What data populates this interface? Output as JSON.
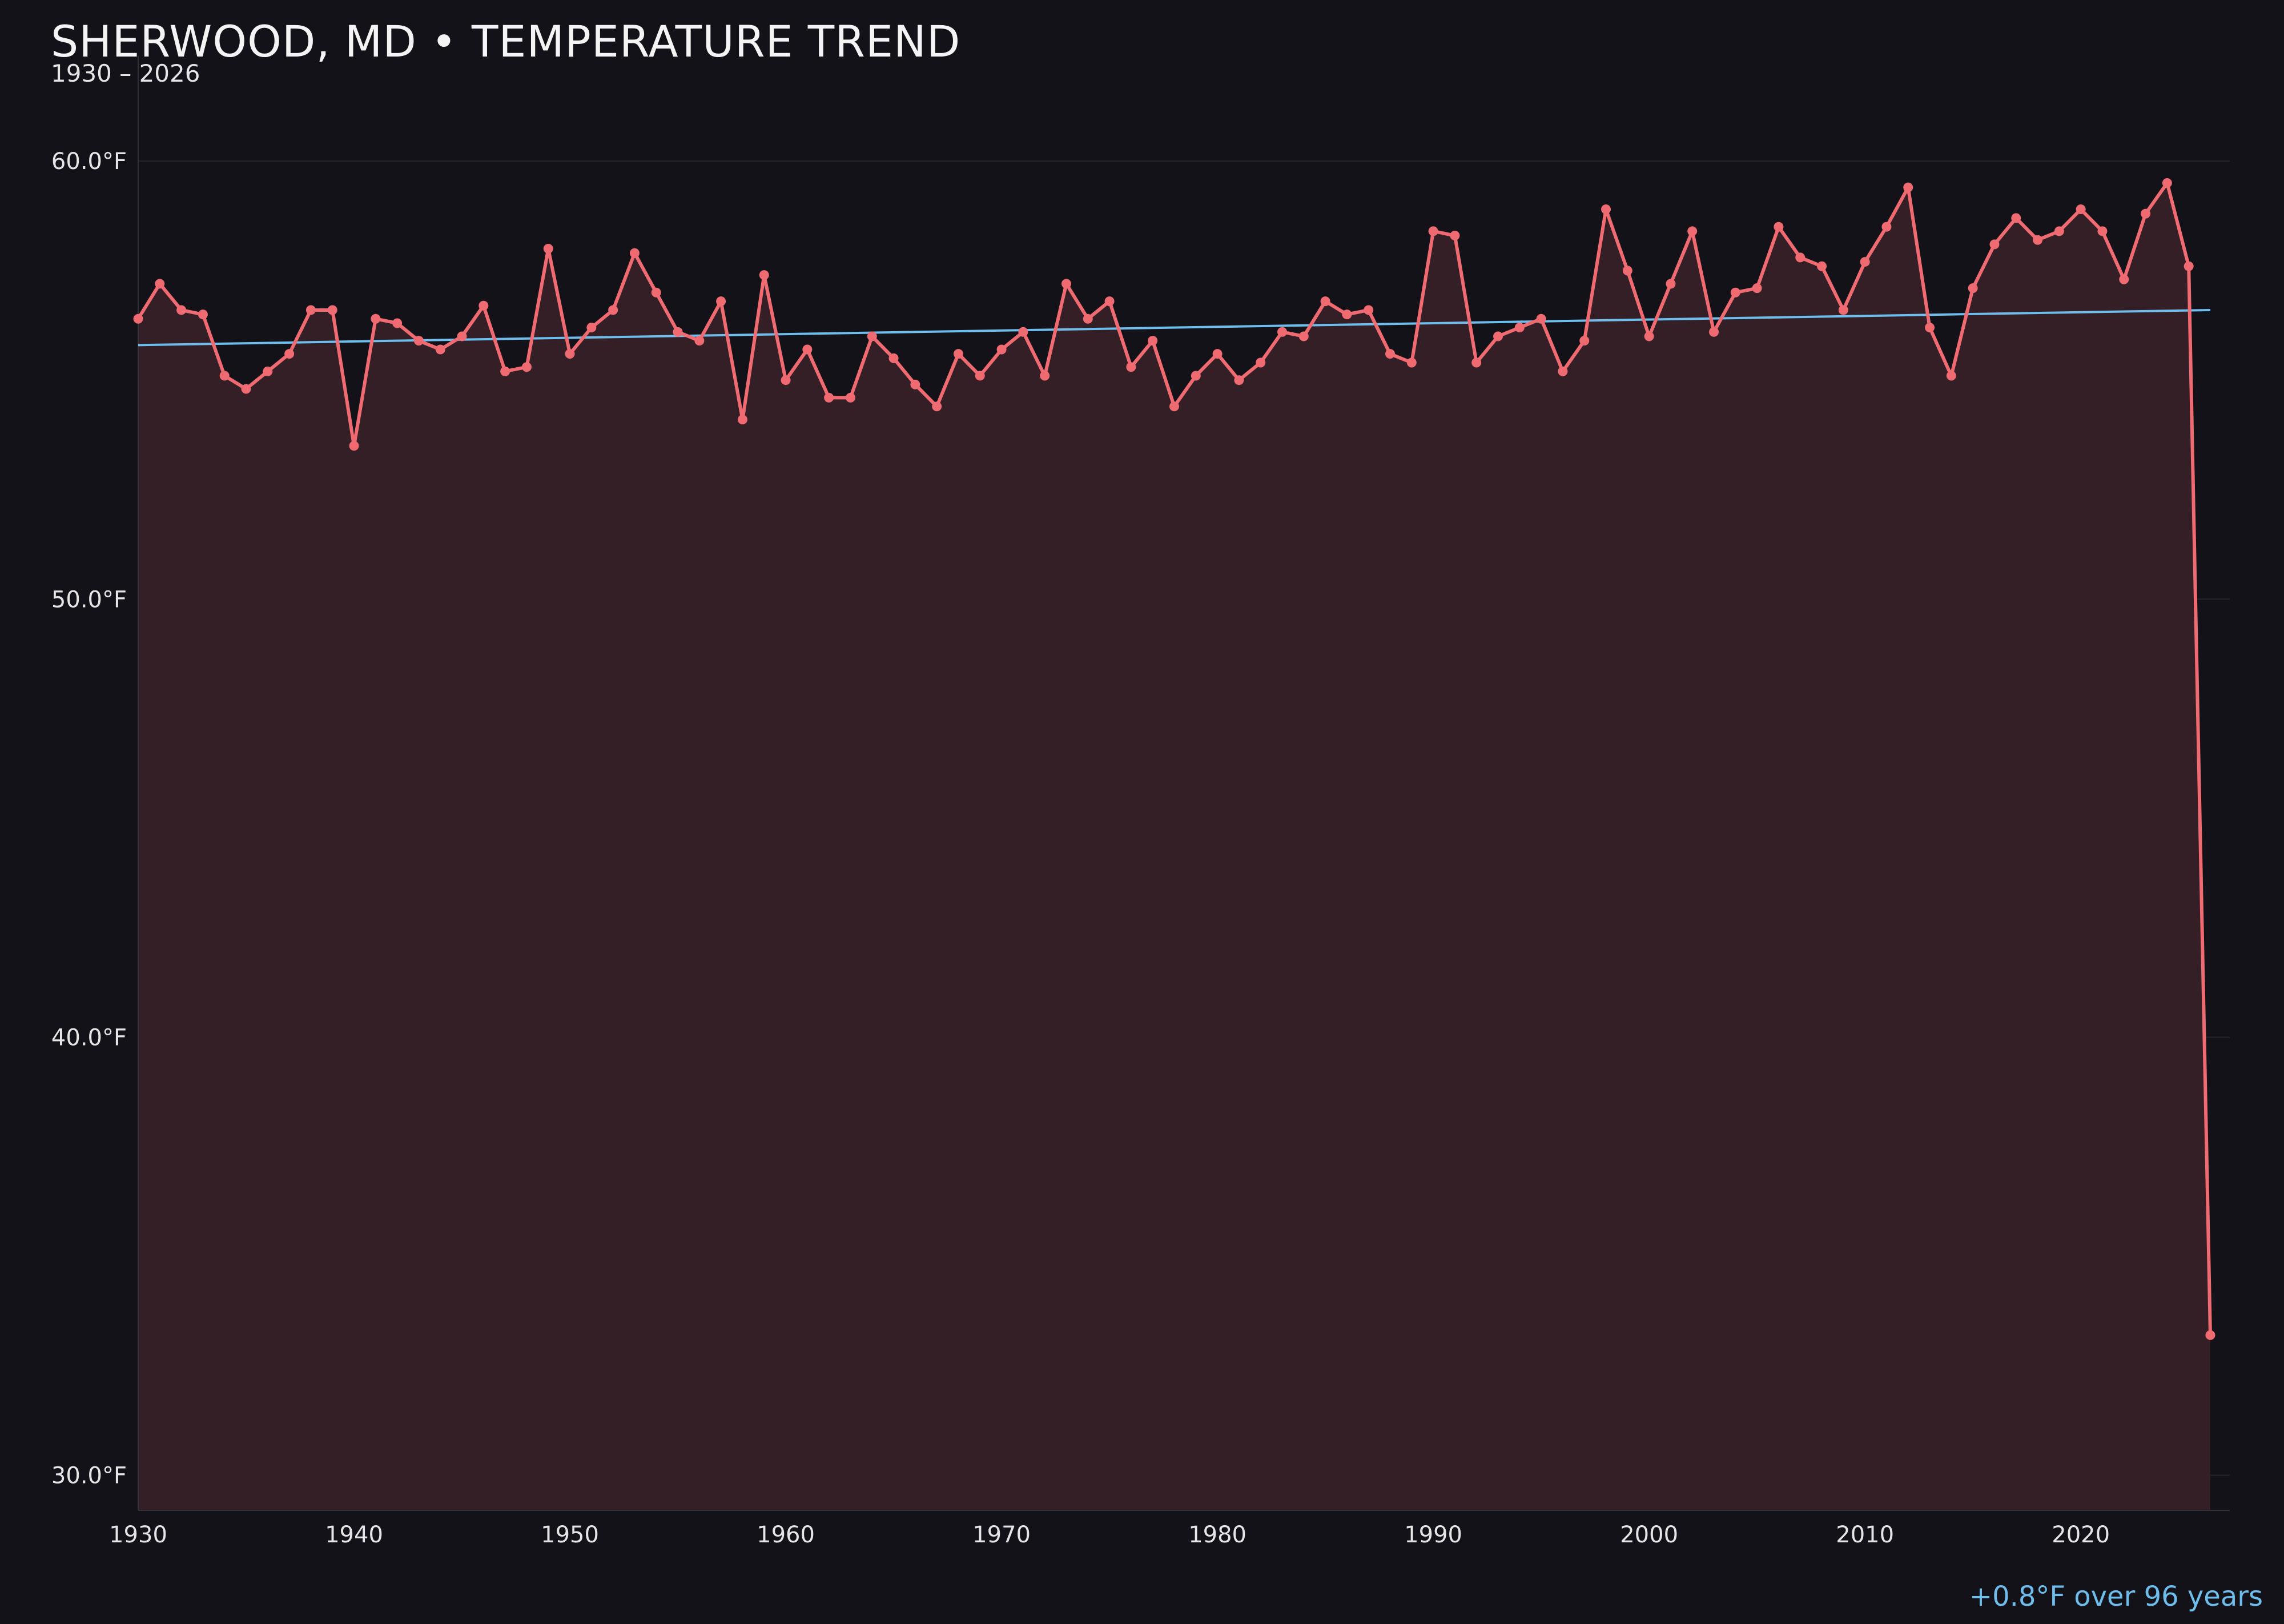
{
  "title": "SHERWOOD, MD • TEMPERATURE TREND",
  "subtitle": "1930 – 2026",
  "annotation": "+0.8°F over 96 years",
  "colors": {
    "background": "#131218",
    "series_line": "#ef6b71",
    "series_fill": "#351f26",
    "trend_line": "#6ebdec",
    "grid": "#26242c",
    "axis": "#33313a",
    "tick_text": "#e6e6e6"
  },
  "chart_data": {
    "type": "line",
    "title": "SHERWOOD, MD • TEMPERATURE TREND",
    "subtitle": "1930 – 2026",
    "xlabel": "",
    "ylabel": "",
    "xlim": [
      1930,
      2026.9
    ],
    "ylim": [
      29.2,
      62.4
    ],
    "x_ticks": [
      1930,
      1940,
      1950,
      1960,
      1970,
      1980,
      1990,
      2000,
      2010,
      2020
    ],
    "x_tick_labels": [
      "1930",
      "1940",
      "1950",
      "1960",
      "1970",
      "1980",
      "1990",
      "2000",
      "2010",
      "2020"
    ],
    "y_ticks": [
      30,
      40,
      50,
      60
    ],
    "y_tick_labels": [
      "30.0°F",
      "40.0°F",
      "50.0°F",
      "60.0°F"
    ],
    "grid": "horizontal",
    "fill_under_line": true,
    "series": [
      {
        "x": [
          1930,
          1931,
          1932,
          1933,
          1934,
          1935,
          1936,
          1937,
          1938,
          1939,
          1940,
          1941,
          1942,
          1943,
          1944,
          1945,
          1946,
          1947,
          1948,
          1949,
          1950,
          1951,
          1952,
          1953,
          1954,
          1955,
          1956,
          1957,
          1958,
          1959,
          1960,
          1961,
          1962,
          1963,
          1964,
          1965,
          1966,
          1967,
          1968,
          1969,
          1970,
          1971,
          1972,
          1973,
          1974,
          1975,
          1976,
          1977,
          1978,
          1979,
          1980,
          1981,
          1982,
          1983,
          1984,
          1985,
          1986,
          1987,
          1988,
          1989,
          1990,
          1991,
          1992,
          1993,
          1994,
          1995,
          1996,
          1997,
          1998,
          1999,
          2000,
          2001,
          2002,
          2003,
          2004,
          2005,
          2006,
          2007,
          2008,
          2009,
          2010,
          2011,
          2012,
          2013,
          2014,
          2015,
          2016,
          2017,
          2018,
          2019,
          2020,
          2021,
          2022,
          2023,
          2024,
          2025,
          2026
        ],
        "values": [
          56.4,
          57.2,
          56.6,
          56.5,
          55.1,
          54.8,
          55.2,
          55.6,
          56.6,
          56.6,
          53.5,
          56.4,
          56.3,
          55.9,
          55.7,
          56.0,
          56.7,
          55.2,
          55.3,
          58.0,
          55.6,
          56.2,
          56.6,
          57.9,
          57.0,
          56.1,
          55.9,
          56.8,
          54.1,
          57.4,
          55.0,
          55.7,
          54.6,
          54.6,
          56.0,
          55.5,
          54.9,
          54.4,
          55.6,
          55.1,
          55.7,
          56.1,
          55.1,
          57.2,
          56.4,
          56.8,
          55.3,
          55.9,
          54.4,
          55.1,
          55.6,
          55.0,
          55.4,
          56.1,
          56.0,
          56.8,
          56.5,
          56.6,
          55.6,
          55.4,
          58.4,
          58.3,
          55.4,
          56.0,
          56.2,
          56.4,
          55.2,
          55.9,
          58.9,
          57.5,
          56.0,
          57.2,
          58.4,
          56.1,
          57.0,
          57.1,
          58.5,
          57.8,
          57.6,
          56.6,
          57.7,
          58.5,
          59.4,
          56.2,
          55.1,
          57.1,
          58.1,
          58.7,
          58.2,
          58.4,
          58.9,
          58.4,
          57.3,
          58.8,
          59.5,
          57.6,
          33.2
        ]
      }
    ],
    "trend": {
      "x": [
        1930,
        2026
      ],
      "values": [
        55.8,
        56.6
      ]
    }
  }
}
